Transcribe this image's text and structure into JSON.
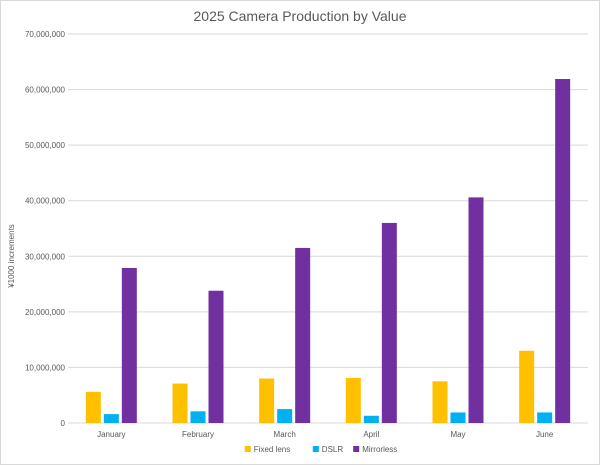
{
  "chart_data": {
    "type": "bar",
    "title": "2025 Camera Production by Value",
    "xlabel": "",
    "ylabel": "¥1000 increments",
    "categories": [
      "January",
      "February",
      "March",
      "April",
      "May",
      "June"
    ],
    "ylim": [
      0,
      70000000
    ],
    "yticks": [
      0,
      10000000,
      20000000,
      30000000,
      40000000,
      50000000,
      60000000,
      70000000
    ],
    "ytick_labels": [
      "0",
      "10,000,000",
      "20,000,000",
      "30,000,000",
      "40,000,000",
      "50,000,000",
      "60,000,000",
      "70,000,000"
    ],
    "grid": true,
    "legend": "bottom",
    "series": [
      {
        "name": "Fixed lens",
        "color": "#ffc000",
        "values": [
          5600000,
          7100000,
          8000000,
          8100000,
          7500000,
          13000000
        ]
      },
      {
        "name": "DSLR",
        "color": "#00b0f0",
        "values": [
          1600000,
          2100000,
          2500000,
          1300000,
          1900000,
          1900000
        ]
      },
      {
        "name": "Mirrorless",
        "color": "#7030a0",
        "values": [
          27900000,
          23800000,
          31500000,
          36000000,
          40600000,
          61900000
        ]
      }
    ]
  }
}
